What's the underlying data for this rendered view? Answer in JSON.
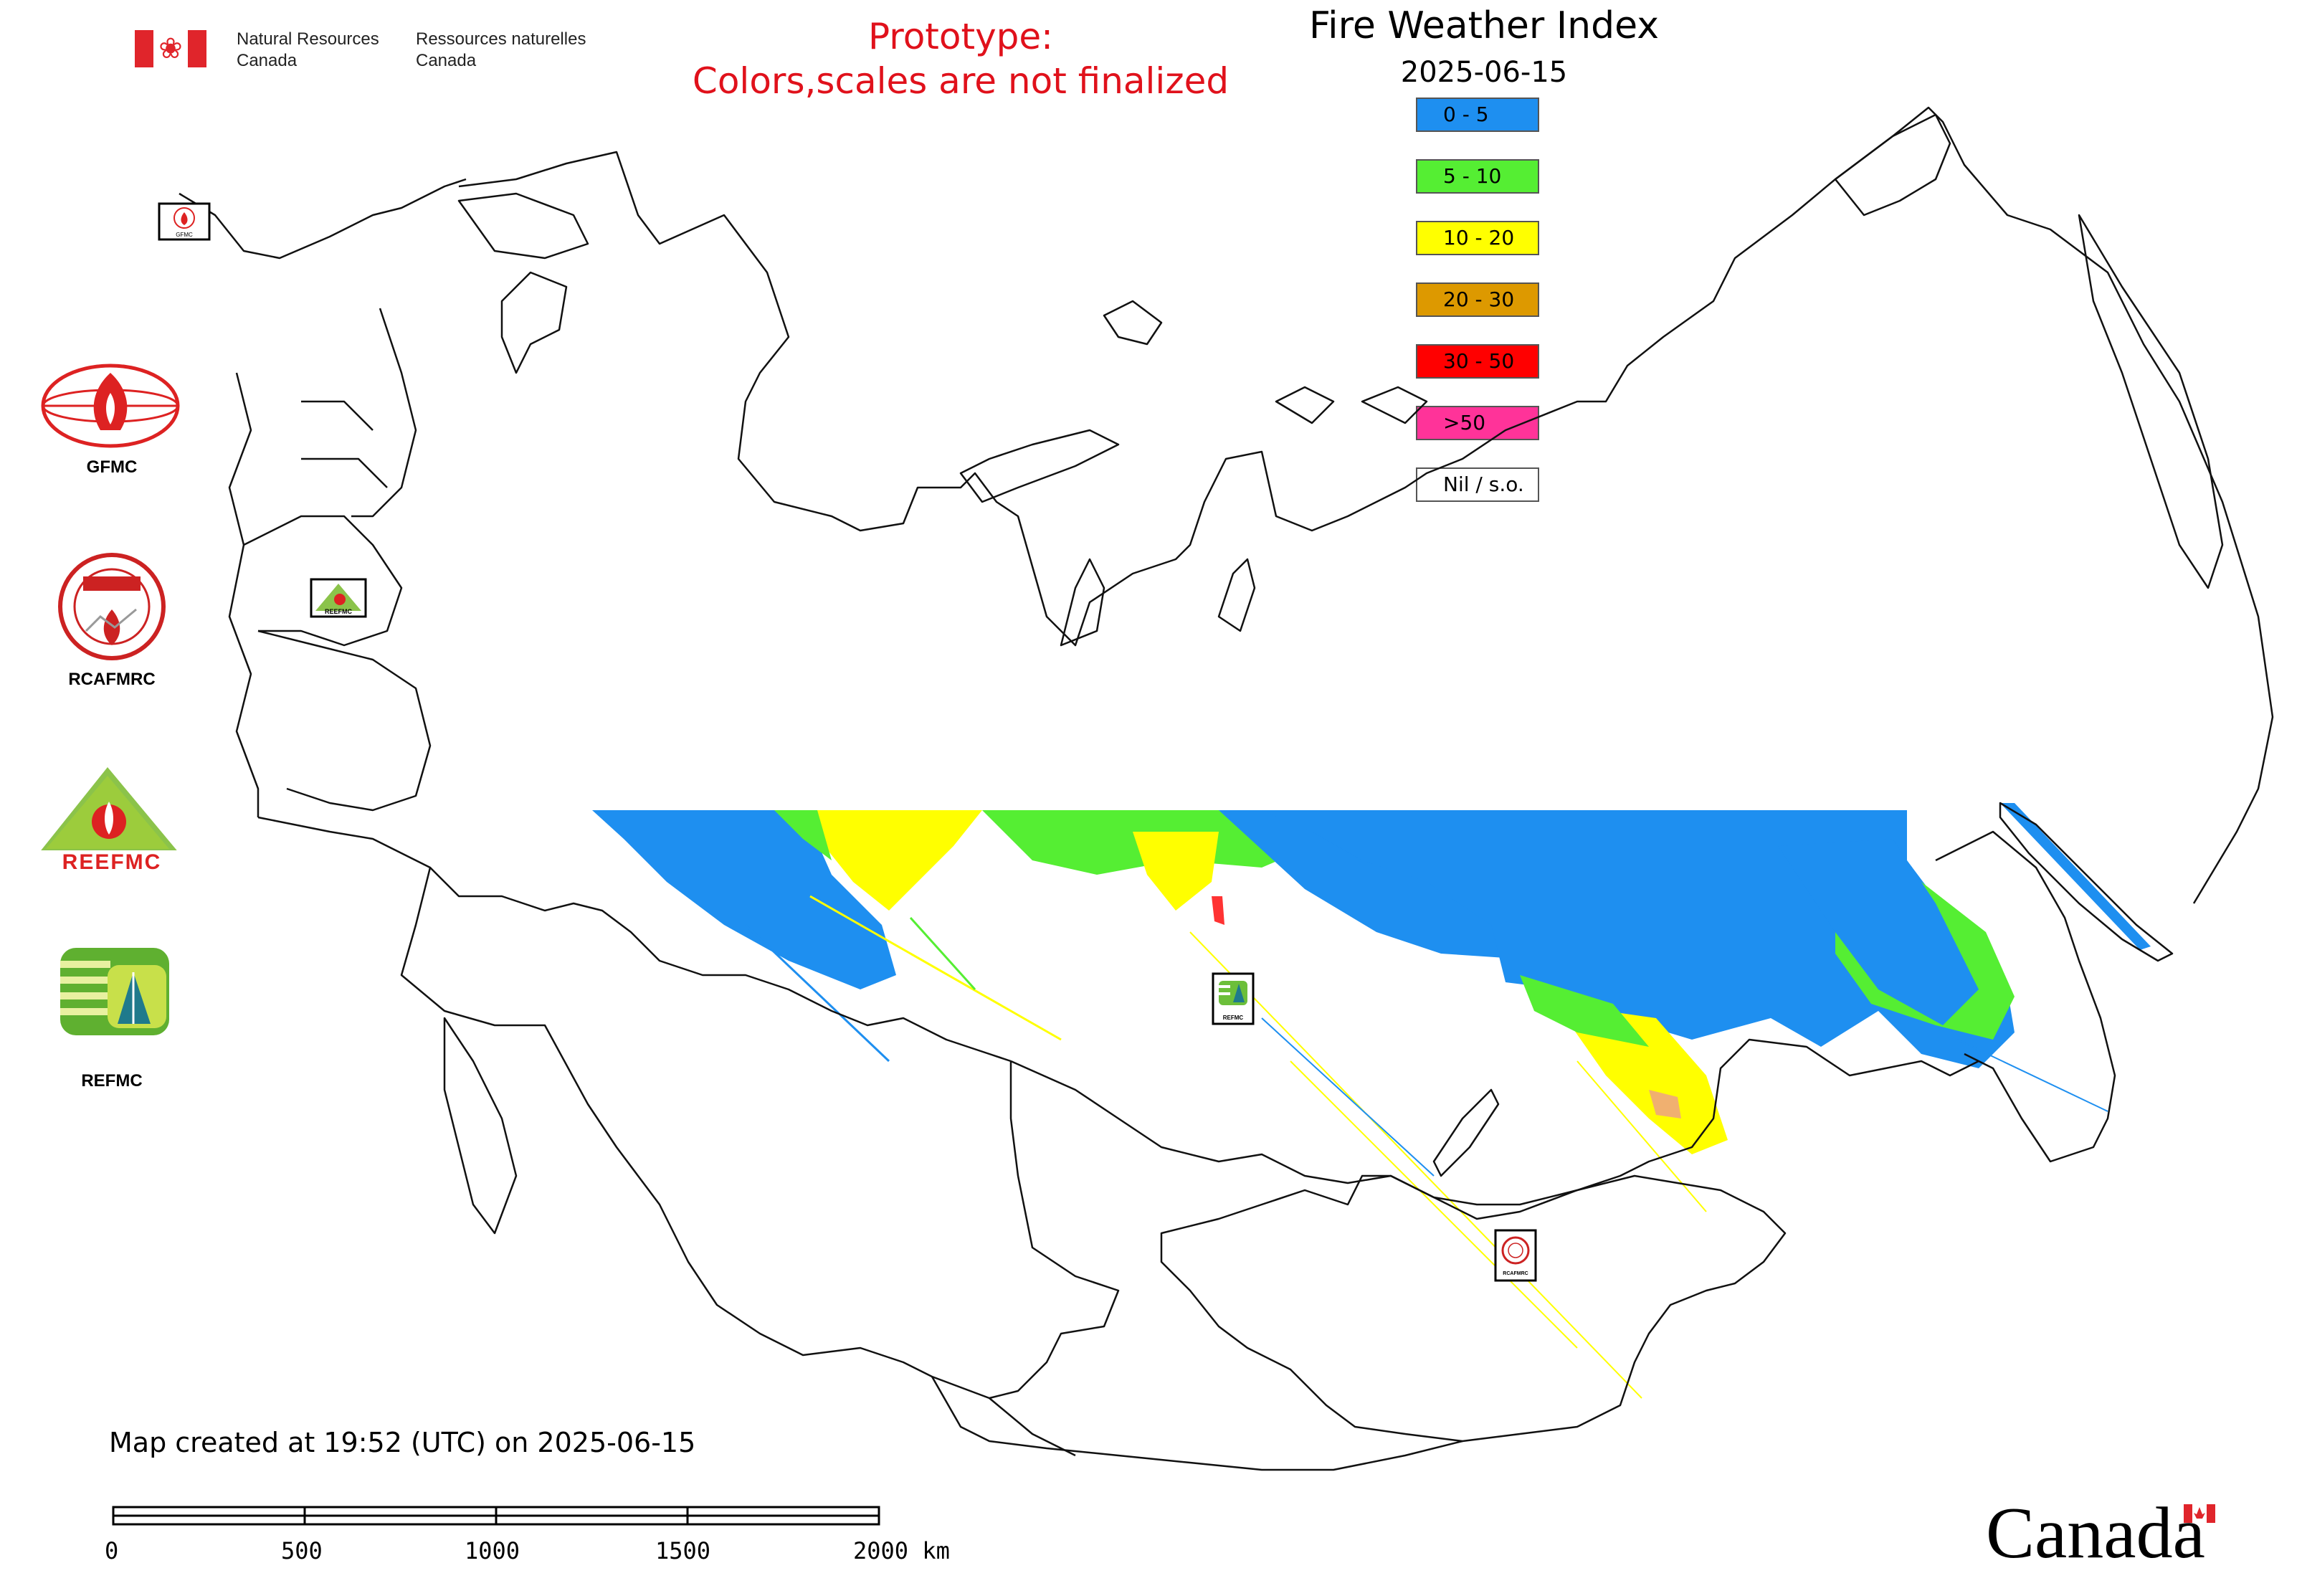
{
  "header": {
    "nrcan_en_line1": "Natural Resources",
    "nrcan_en_line2": "Canada",
    "nrcan_fr_line1": "Ressources naturelles",
    "nrcan_fr_line2": "Canada",
    "prototype_line1": "Prototype:",
    "prototype_line2": "Colors,scales are not finalized"
  },
  "map": {
    "title": "Fire Weather Index",
    "date": "2025-06-15",
    "legend": [
      {
        "label": "0 - 5",
        "color": "#1e8ff0"
      },
      {
        "label": "5 - 10",
        "color": "#55ee33"
      },
      {
        "label": "10 - 20",
        "color": "#ffff00"
      },
      {
        "label": "20 - 30",
        "color": "#dd9900"
      },
      {
        "label": "30 - 50",
        "color": "#ff0000"
      },
      {
        "label": ">50",
        "color": "#ff3399"
      },
      {
        "label": "Nil / s.o.",
        "color": "#ffffff"
      }
    ]
  },
  "logos": [
    {
      "label": "GFMC"
    },
    {
      "label": "RCAFMRC"
    },
    {
      "label": "REEFMC"
    },
    {
      "label": "REFMC"
    }
  ],
  "logo_text": {
    "gfmc_small": "GFMC",
    "rcafmrc_small": "RCAFMRC",
    "reefmc_small": "REEFMC",
    "refmc_small": "REFMC"
  },
  "footer": {
    "created": "Map created at 19:52 (UTC) on 2025-06-15",
    "scale_ticks": [
      "0",
      "500",
      "1000",
      "1500",
      "2000 km"
    ],
    "wordmark": "Canada"
  }
}
